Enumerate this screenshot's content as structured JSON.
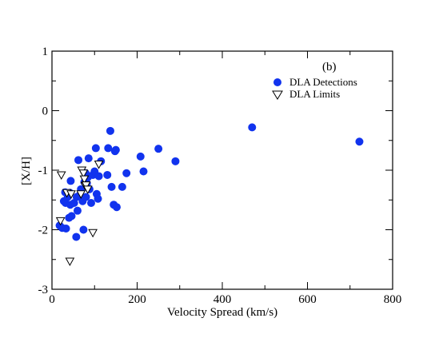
{
  "chart_data": {
    "type": "scatter",
    "title": "",
    "panel_tag": "(b)",
    "xlabel": "Velocity Spread (km/s)",
    "ylabel": "[X/H]",
    "xlim": [
      0,
      800
    ],
    "ylim": [
      -3,
      1
    ],
    "x_ticks": [
      0,
      200,
      400,
      600,
      800
    ],
    "y_ticks": [
      -3,
      -2,
      -1,
      0,
      1
    ],
    "x_tick_labels": [
      "0",
      "200",
      "400",
      "600",
      "800"
    ],
    "y_tick_labels": [
      "-3",
      "-2",
      "-1",
      "0",
      "1"
    ],
    "grid": false,
    "legend_position": "top-right",
    "series": [
      {
        "name": "DLA Detections",
        "marker": "filled-circle",
        "color": "#1133ee",
        "points": [
          [
            18,
            -1.93
          ],
          [
            24,
            -1.97
          ],
          [
            28,
            -1.52
          ],
          [
            31,
            -1.37
          ],
          [
            32,
            -1.55
          ],
          [
            33,
            -1.98
          ],
          [
            37,
            -1.45
          ],
          [
            40,
            -1.8
          ],
          [
            42,
            -1.38
          ],
          [
            43,
            -1.58
          ],
          [
            44,
            -1.18
          ],
          [
            46,
            -1.77
          ],
          [
            52,
            -1.55
          ],
          [
            57,
            -2.12
          ],
          [
            58,
            -1.45
          ],
          [
            60,
            -1.68
          ],
          [
            62,
            -0.83
          ],
          [
            65,
            -1.42
          ],
          [
            68,
            -1.32
          ],
          [
            72,
            -1.52
          ],
          [
            74,
            -2.0
          ],
          [
            76,
            -1.2
          ],
          [
            79,
            -1.05
          ],
          [
            80,
            -1.45
          ],
          [
            82,
            -1.22
          ],
          [
            84,
            -1.12
          ],
          [
            86,
            -0.8
          ],
          [
            88,
            -1.32
          ],
          [
            92,
            -1.55
          ],
          [
            96,
            -1.08
          ],
          [
            100,
            -1.02
          ],
          [
            103,
            -0.63
          ],
          [
            105,
            -1.4
          ],
          [
            108,
            -1.48
          ],
          [
            110,
            -1.1
          ],
          [
            115,
            -0.85
          ],
          [
            130,
            -1.08
          ],
          [
            132,
            -0.63
          ],
          [
            137,
            -0.34
          ],
          [
            140,
            -1.28
          ],
          [
            145,
            -1.58
          ],
          [
            148,
            -0.68
          ],
          [
            150,
            -0.66
          ],
          [
            152,
            -1.62
          ],
          [
            165,
            -1.28
          ],
          [
            175,
            -1.05
          ],
          [
            208,
            -0.77
          ],
          [
            215,
            -1.02
          ],
          [
            250,
            -0.64
          ],
          [
            290,
            -0.85
          ],
          [
            470,
            -0.28
          ],
          [
            722,
            -0.52
          ]
        ]
      },
      {
        "name": "DLA Limits",
        "marker": "open-down-triangle",
        "color": "#000000",
        "points": [
          [
            20,
            -1.85
          ],
          [
            22,
            -1.08
          ],
          [
            35,
            -1.38
          ],
          [
            42,
            -2.53
          ],
          [
            45,
            -1.4
          ],
          [
            68,
            -1.4
          ],
          [
            70,
            -1.0
          ],
          [
            74,
            -1.05
          ],
          [
            76,
            -1.15
          ],
          [
            78,
            -1.26
          ],
          [
            80,
            -1.25
          ],
          [
            84,
            -1.32
          ],
          [
            96,
            -2.05
          ],
          [
            110,
            -0.9
          ]
        ]
      }
    ]
  }
}
